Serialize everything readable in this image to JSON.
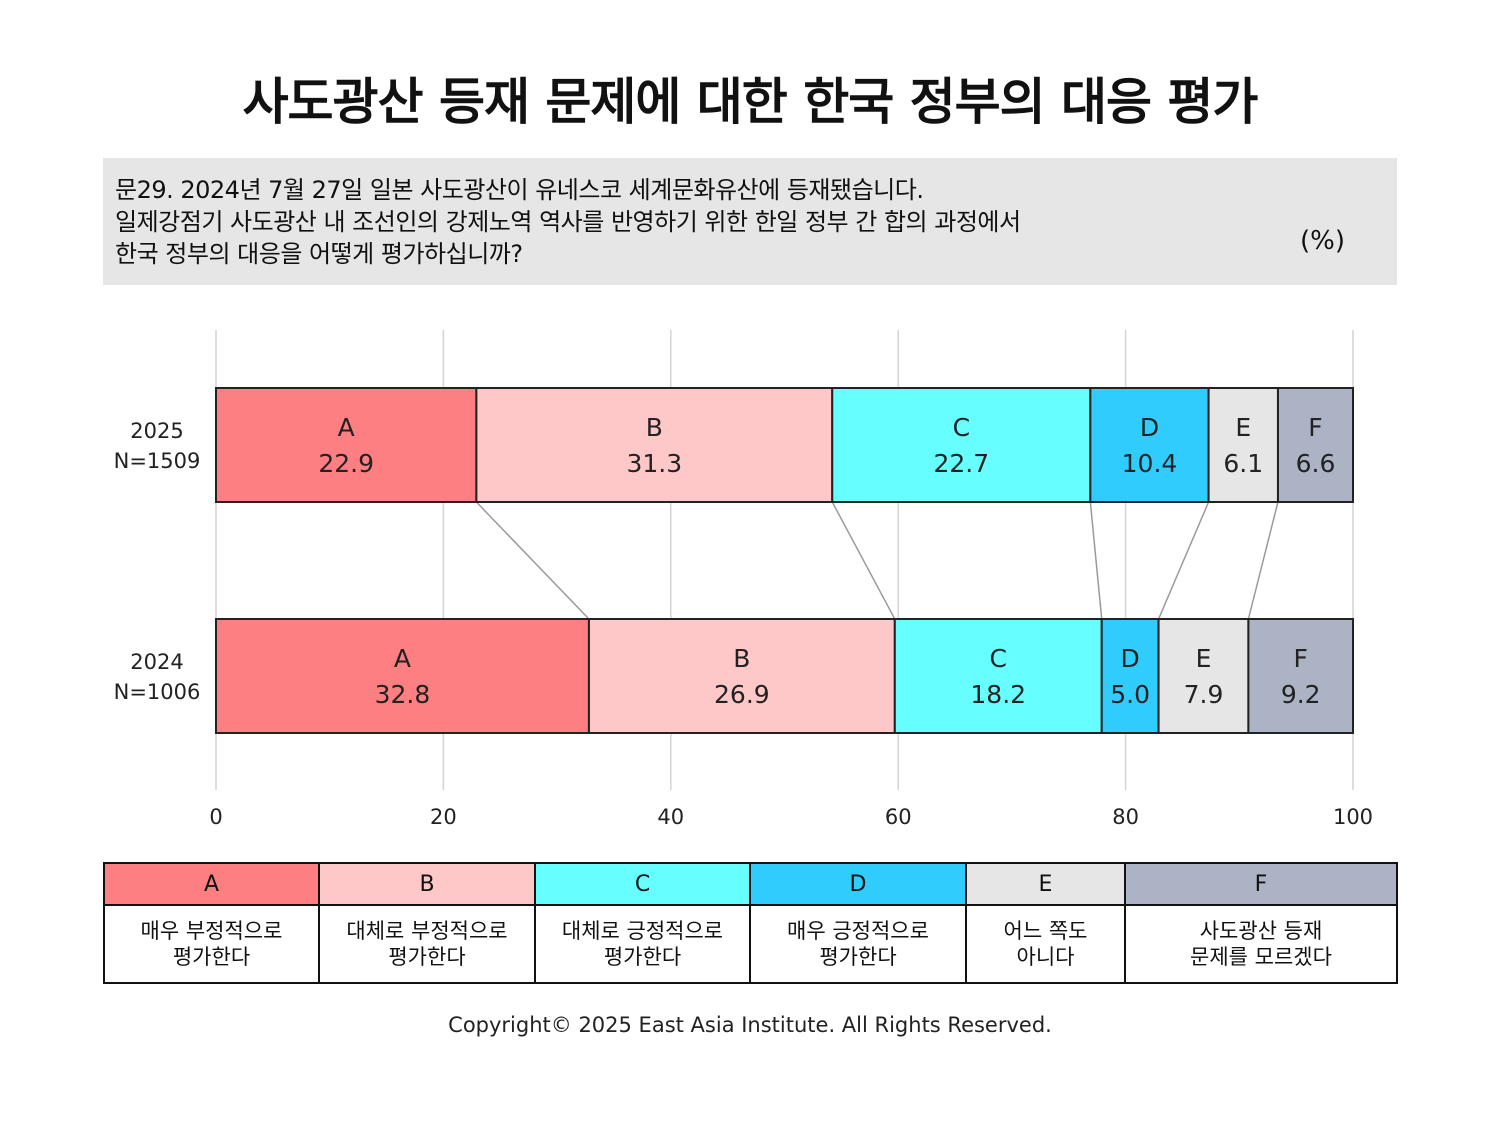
{
  "title": "사도광산 등재 문제에 대한 한국 정부의 대응 평가",
  "question": {
    "lines": [
      "문29. 2024년 7월 27일 일본 사도광산이 유네스코 세계문화유산에 등재됐습니다.",
      "일제강점기 사도광산 내 조선인의 강제노역 역사를 반영하기 위한 한일 정부 간 합의 과정에서",
      "한국 정부의 대응을 어떻게 평가하십니까?"
    ],
    "unit": "(%)"
  },
  "chart_data": {
    "type": "bar",
    "stacked": true,
    "orientation": "horizontal",
    "categories": [
      "2025",
      "2024"
    ],
    "category_labels": [
      {
        "year": "2025",
        "n": "N=1509"
      },
      {
        "year": "2024",
        "n": "N=1006"
      }
    ],
    "series": [
      {
        "name": "A",
        "values": [
          22.9,
          32.8
        ],
        "color": "#fe7f82"
      },
      {
        "name": "B",
        "values": [
          31.3,
          26.9
        ],
        "color": "#fec8c8"
      },
      {
        "name": "C",
        "values": [
          22.7,
          18.2
        ],
        "color": "#66feff"
      },
      {
        "name": "D",
        "values": [
          10.4,
          5.0
        ],
        "color": "#31ccfe"
      },
      {
        "name": "E",
        "values": [
          6.1,
          7.9
        ],
        "color": "#e6e6e6"
      },
      {
        "name": "F",
        "values": [
          6.6,
          9.2
        ],
        "color": "#abb3c4"
      }
    ],
    "value_labels": [
      [
        "22.9",
        "31.3",
        "22.7",
        "10.4",
        "6.1",
        "6.6"
      ],
      [
        "32.8",
        "26.9",
        "18.2",
        "5.0",
        "7.9",
        "9.2"
      ]
    ],
    "xlim": [
      0,
      100
    ],
    "xticks": [
      "0",
      "20",
      "40",
      "60",
      "80",
      "100"
    ],
    "grid": true
  },
  "legend": [
    {
      "key": "A",
      "desc": [
        "매우 부정적으로",
        "평가한다"
      ],
      "color": "#fe7f82"
    },
    {
      "key": "B",
      "desc": [
        "대체로 부정적으로",
        "평가한다"
      ],
      "color": "#fec8c8"
    },
    {
      "key": "C",
      "desc": [
        "대체로 긍정적으로",
        "평가한다"
      ],
      "color": "#66feff"
    },
    {
      "key": "D",
      "desc": [
        "매우 긍정적으로",
        "평가한다"
      ],
      "color": "#31ccfe"
    },
    {
      "key": "E",
      "desc": [
        "어느 쪽도",
        "아니다"
      ],
      "color": "#e6e6e6"
    },
    {
      "key": "F",
      "desc": [
        "사도광산 등재",
        "문제를 모르겠다"
      ],
      "color": "#abb3c4"
    }
  ],
  "copyright": "Copyright© 2025 East Asia Institute. All Rights Reserved."
}
